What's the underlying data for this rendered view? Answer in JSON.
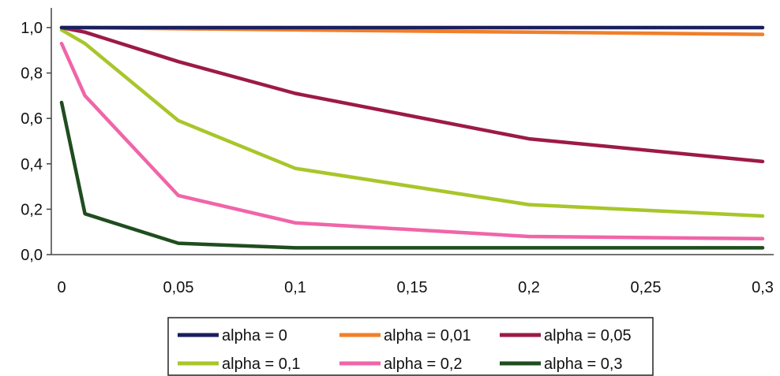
{
  "chart_data": {
    "type": "line",
    "title": "",
    "xlabel": "",
    "ylabel": "",
    "x": [
      0,
      0.01,
      0.05,
      0.1,
      0.2,
      0.3
    ],
    "xlim": [
      0,
      0.3
    ],
    "ylim": [
      0,
      1.0
    ],
    "x_ticks": [
      0,
      0.05,
      0.1,
      0.15,
      0.2,
      0.25,
      0.3
    ],
    "x_tick_labels": [
      "0",
      "0,05",
      "0,1",
      "0,15",
      "0,2",
      "0,25",
      "0,3"
    ],
    "y_ticks": [
      0,
      0.2,
      0.4,
      0.6,
      0.8,
      1.0
    ],
    "y_tick_labels": [
      "0,0",
      "0,2",
      "0,4",
      "0,6",
      "0,8",
      "1,0"
    ],
    "grid": false,
    "legend_position": "bottom",
    "series": [
      {
        "name": "alpha = 0",
        "color": "#1a1f5e",
        "values": [
          1.0,
          1.0,
          1.0,
          1.0,
          1.0,
          1.0
        ]
      },
      {
        "name": "alpha = 0,01",
        "color": "#f07f2a",
        "values": [
          1.0,
          1.0,
          0.995,
          0.99,
          0.98,
          0.97
        ]
      },
      {
        "name": "alpha = 0,05",
        "color": "#9c1a47",
        "values": [
          1.0,
          0.98,
          0.85,
          0.71,
          0.51,
          0.41
        ]
      },
      {
        "name": "alpha = 0,1",
        "color": "#a8c62a",
        "values": [
          0.99,
          0.93,
          0.59,
          0.38,
          0.22,
          0.17
        ]
      },
      {
        "name": "alpha = 0,2",
        "color": "#f065a8",
        "values": [
          0.93,
          0.7,
          0.26,
          0.14,
          0.08,
          0.07
        ]
      },
      {
        "name": "alpha = 0,3",
        "color": "#1f4d1f",
        "values": [
          0.67,
          0.18,
          0.05,
          0.03,
          0.03,
          0.03
        ]
      }
    ]
  }
}
